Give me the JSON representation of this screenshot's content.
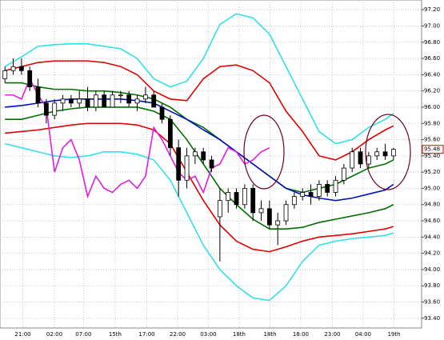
{
  "chart_data": {
    "type": "candlestick",
    "ylim": [
      93.28,
      97.32
    ],
    "yticks": [
      {
        "value": 97.2,
        "label": "97.20"
      },
      {
        "value": 97.0,
        "label": "97.00"
      },
      {
        "value": 96.8,
        "label": "96.80"
      },
      {
        "value": 96.6,
        "label": "96.60"
      },
      {
        "value": 96.4,
        "label": "96.40"
      },
      {
        "value": 96.2,
        "label": "96.20"
      },
      {
        "value": 96.0,
        "label": "96.00"
      },
      {
        "value": 95.8,
        "label": "95.80"
      },
      {
        "value": 95.6,
        "label": "95.60"
      },
      {
        "value": 95.4,
        "label": "95.40"
      },
      {
        "value": 95.2,
        "label": "95.20"
      },
      {
        "value": 95.0,
        "label": "95.00"
      },
      {
        "value": 94.8,
        "label": "94.80"
      },
      {
        "value": 94.6,
        "label": "94.60"
      },
      {
        "value": 94.4,
        "label": "94.40"
      },
      {
        "value": 94.2,
        "label": "94.20"
      },
      {
        "value": 94.0,
        "label": "94.00"
      },
      {
        "value": 93.8,
        "label": "93.80"
      },
      {
        "value": 93.6,
        "label": "93.60"
      },
      {
        "value": 93.4,
        "label": "93.40"
      }
    ],
    "xlim": [
      -0.6,
      50.4
    ],
    "xticks": [
      {
        "value": 2.16,
        "label": "21:00"
      },
      {
        "value": 5.98,
        "label": "02:00"
      },
      {
        "value": 9.5,
        "label": "07:00"
      },
      {
        "value": 13.33,
        "label": "15th"
      },
      {
        "value": 17.16,
        "label": "17:00"
      },
      {
        "value": 20.88,
        "label": "22:00"
      },
      {
        "value": 24.6,
        "label": "03:00"
      },
      {
        "value": 28.33,
        "label": "18th"
      },
      {
        "value": 32.06,
        "label": "18th"
      },
      {
        "value": 35.78,
        "label": "18:00"
      },
      {
        "value": 39.6,
        "label": "23:00"
      },
      {
        "value": 43.33,
        "label": "04:00"
      },
      {
        "value": 47.06,
        "label": "19th"
      }
    ],
    "grid": true,
    "current_price": {
      "value": 95.48,
      "label": "95.48"
    },
    "candles": [
      {
        "open": 96.35,
        "high": 96.5,
        "low": 96.3,
        "close": 96.45
      },
      {
        "open": 96.45,
        "high": 96.6,
        "low": 96.4,
        "close": 96.5
      },
      {
        "open": 96.5,
        "high": 96.6,
        "low": 96.4,
        "close": 96.45
      },
      {
        "open": 96.45,
        "high": 96.5,
        "low": 96.2,
        "close": 96.25
      },
      {
        "open": 96.25,
        "high": 96.35,
        "low": 96.0,
        "close": 96.05
      },
      {
        "open": 96.05,
        "high": 96.1,
        "low": 95.8,
        "close": 95.9
      },
      {
        "open": 95.9,
        "high": 96.1,
        "low": 95.85,
        "close": 96.05
      },
      {
        "open": 96.05,
        "high": 96.15,
        "low": 95.95,
        "close": 96.1
      },
      {
        "open": 96.1,
        "high": 96.15,
        "low": 96.0,
        "close": 96.05
      },
      {
        "open": 96.05,
        "high": 96.2,
        "low": 96.0,
        "close": 96.1
      },
      {
        "open": 96.1,
        "high": 96.25,
        "low": 95.95,
        "close": 96.0
      },
      {
        "open": 96.0,
        "high": 96.2,
        "low": 95.95,
        "close": 96.15
      },
      {
        "open": 96.15,
        "high": 96.2,
        "low": 96.0,
        "close": 96.0
      },
      {
        "open": 96.0,
        "high": 96.2,
        "low": 96.0,
        "close": 96.15
      },
      {
        "open": 96.15,
        "high": 96.2,
        "low": 96.05,
        "close": 96.15
      },
      {
        "open": 96.15,
        "high": 96.2,
        "low": 96.0,
        "close": 96.05
      },
      {
        "open": 96.05,
        "high": 96.15,
        "low": 95.95,
        "close": 96.1
      },
      {
        "open": 96.1,
        "high": 96.25,
        "low": 96.05,
        "close": 96.15
      },
      {
        "open": 96.15,
        "high": 96.2,
        "low": 96.0,
        "close": 96.0
      },
      {
        "open": 96.0,
        "high": 96.05,
        "low": 95.8,
        "close": 95.85
      },
      {
        "open": 95.85,
        "high": 95.9,
        "low": 95.4,
        "close": 95.5
      },
      {
        "open": 95.5,
        "high": 95.6,
        "low": 94.9,
        "close": 95.1
      },
      {
        "open": 95.1,
        "high": 95.5,
        "low": 95.0,
        "close": 95.4
      },
      {
        "open": 95.4,
        "high": 95.5,
        "low": 95.3,
        "close": 95.45
      },
      {
        "open": 95.45,
        "high": 95.5,
        "low": 95.3,
        "close": 95.35
      },
      {
        "open": 95.35,
        "high": 95.4,
        "low": 95.2,
        "close": 95.25
      },
      {
        "open": 94.65,
        "high": 95.0,
        "low": 94.1,
        "close": 94.85
      },
      {
        "open": 94.85,
        "high": 95.0,
        "low": 94.7,
        "close": 94.95
      },
      {
        "open": 94.95,
        "high": 95.0,
        "low": 94.75,
        "close": 94.8
      },
      {
        "open": 94.8,
        "high": 95.05,
        "low": 94.75,
        "close": 95.0
      },
      {
        "open": 95.0,
        "high": 95.05,
        "low": 94.6,
        "close": 94.7
      },
      {
        "open": 94.7,
        "high": 94.85,
        "low": 94.6,
        "close": 94.75
      },
      {
        "open": 94.75,
        "high": 94.85,
        "low": 94.5,
        "close": 94.55
      },
      {
        "open": 94.55,
        "high": 94.7,
        "low": 94.3,
        "close": 94.6
      },
      {
        "open": 94.6,
        "high": 94.85,
        "low": 94.55,
        "close": 94.8
      },
      {
        "open": 94.8,
        "high": 94.95,
        "low": 94.75,
        "close": 94.9
      },
      {
        "open": 94.9,
        "high": 95.0,
        "low": 94.85,
        "close": 94.95
      },
      {
        "open": 94.95,
        "high": 95.05,
        "low": 94.8,
        "close": 94.9
      },
      {
        "open": 94.9,
        "high": 95.1,
        "low": 94.85,
        "close": 95.05
      },
      {
        "open": 95.05,
        "high": 95.1,
        "low": 94.9,
        "close": 94.95
      },
      {
        "open": 94.95,
        "high": 95.15,
        "low": 94.9,
        "close": 95.1
      },
      {
        "open": 95.1,
        "high": 95.3,
        "low": 95.05,
        "close": 95.25
      },
      {
        "open": 95.25,
        "high": 95.5,
        "low": 95.2,
        "close": 95.45
      },
      {
        "open": 95.45,
        "high": 95.5,
        "low": 95.25,
        "close": 95.3
      },
      {
        "open": 95.3,
        "high": 95.45,
        "low": 95.25,
        "close": 95.4
      },
      {
        "open": 95.4,
        "high": 95.5,
        "low": 95.35,
        "close": 95.45
      },
      {
        "open": 95.45,
        "high": 95.55,
        "low": 95.35,
        "close": 95.4
      },
      {
        "open": 95.4,
        "high": 95.5,
        "low": 95.35,
        "close": 95.48
      }
    ],
    "oscillator": {
      "color": "#e020e0",
      "values": [
        96.15,
        96.15,
        96.1,
        96.35,
        96.15,
        96.0,
        95.2,
        95.5,
        95.6,
        95.35,
        94.9,
        95.15,
        95.0,
        94.95,
        95.05,
        95.1,
        95.0,
        95.15,
        95.75,
        95.6,
        95.4,
        95.2,
        95.1,
        95.15,
        94.95,
        95.25,
        95.3,
        95.5,
        95.45,
        95.3,
        95.35,
        95.45,
        95.5,
        null,
        null,
        null,
        null,
        null,
        null,
        null,
        null,
        null,
        null,
        null,
        null,
        null,
        null,
        null
      ]
    },
    "band_x": [
      0,
      2,
      4,
      6,
      8,
      10,
      12,
      14,
      16,
      18,
      20,
      22,
      24,
      26,
      28,
      30,
      32,
      34,
      36,
      38,
      40,
      42,
      44,
      46,
      47
    ],
    "bands": [
      {
        "color": "#33e0e8",
        "values": [
          96.5,
          96.62,
          96.75,
          96.77,
          96.78,
          96.78,
          96.75,
          96.72,
          96.6,
          96.35,
          96.25,
          96.32,
          96.6,
          97.02,
          97.15,
          97.1,
          96.9,
          96.5,
          96.1,
          95.7,
          95.55,
          95.6,
          95.75,
          95.85,
          95.92
        ]
      },
      {
        "color": "#e00000",
        "values": [
          96.45,
          96.5,
          96.55,
          96.57,
          96.57,
          96.57,
          96.55,
          96.5,
          96.4,
          96.2,
          96.1,
          96.08,
          96.35,
          96.5,
          96.52,
          96.45,
          96.3,
          95.95,
          95.7,
          95.4,
          95.35,
          95.45,
          95.6,
          95.72,
          95.77
        ]
      },
      {
        "color": "#007000",
        "values": [
          96.3,
          96.3,
          96.25,
          96.22,
          96.22,
          96.2,
          96.2,
          96.18,
          96.15,
          96.1,
          96.0,
          95.85,
          95.75,
          95.6,
          95.45,
          95.3,
          95.15,
          95.0,
          94.95,
          95.0,
          95.05,
          95.15,
          95.25,
          95.3,
          95.35
        ]
      },
      {
        "color": "#0010c0",
        "values": [
          96.0,
          96.02,
          96.05,
          96.08,
          96.1,
          96.1,
          96.1,
          96.1,
          96.08,
          96.05,
          95.95,
          95.85,
          95.72,
          95.6,
          95.45,
          95.3,
          95.15,
          95.0,
          94.92,
          94.88,
          94.85,
          94.88,
          94.93,
          94.98,
          95.05
        ]
      },
      {
        "color": "#007000",
        "values": [
          95.85,
          95.85,
          95.9,
          95.95,
          95.98,
          96.0,
          96.0,
          96.0,
          96.0,
          95.95,
          95.85,
          95.6,
          95.3,
          95.0,
          94.8,
          94.62,
          94.5,
          94.5,
          94.52,
          94.58,
          94.62,
          94.66,
          94.7,
          94.75,
          94.8
        ]
      },
      {
        "color": "#e00000",
        "values": [
          95.68,
          95.7,
          95.72,
          95.75,
          95.78,
          95.8,
          95.8,
          95.8,
          95.78,
          95.72,
          95.55,
          95.2,
          94.85,
          94.55,
          94.35,
          94.25,
          94.22,
          94.28,
          94.35,
          94.4,
          94.42,
          94.44,
          94.47,
          94.5,
          94.53
        ]
      },
      {
        "color": "#33e0e8",
        "values": [
          95.55,
          95.5,
          95.45,
          95.4,
          95.38,
          95.4,
          95.45,
          95.45,
          95.42,
          95.35,
          95.1,
          94.7,
          94.3,
          94.0,
          93.8,
          93.65,
          93.62,
          93.8,
          94.1,
          94.3,
          94.35,
          94.38,
          94.4,
          94.42,
          94.45
        ]
      }
    ]
  }
}
